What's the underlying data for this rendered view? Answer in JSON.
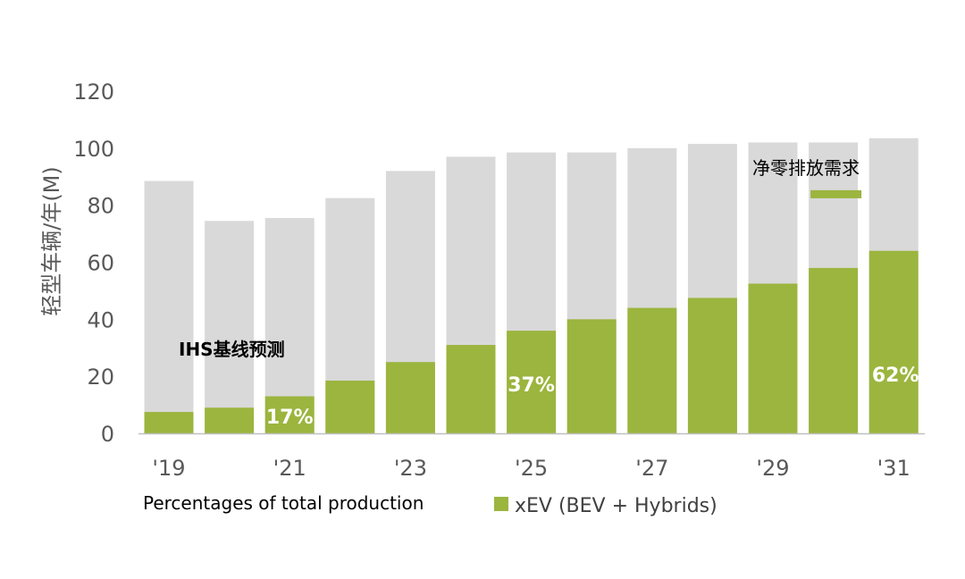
{
  "chart_data": {
    "type": "bar",
    "stacked_overlay": true,
    "categories": [
      "2019",
      "2020",
      "2021",
      "2022",
      "2023",
      "2024",
      "2025",
      "2026",
      "2027",
      "2028",
      "2029",
      "2030",
      "2031"
    ],
    "tick_labels": [
      "'19",
      "'21",
      "'23",
      "'25",
      "'27",
      "'29",
      "'31"
    ],
    "tick_categories": [
      "2019",
      "2021",
      "2023",
      "2025",
      "2027",
      "2029",
      "2031"
    ],
    "series": [
      {
        "values": [
          88.5,
          74.5,
          75.5,
          82.5,
          92,
          97,
          98.5,
          98.5,
          100,
          101.5,
          102,
          102,
          103.5
        ],
        "color": "#d9d9d9"
      },
      {
        "name": "xEV (BEV + Hybrids)",
        "values": [
          7.5,
          9,
          13,
          18.5,
          25,
          31,
          36,
          40,
          44,
          47.5,
          52.5,
          58,
          64
        ],
        "color": "#9bb53e"
      }
    ],
    "ylabel": "轻型车辆/年(M)",
    "yticks": [
      0,
      20,
      40,
      60,
      80,
      100,
      120
    ],
    "ylim": [
      0,
      120
    ],
    "grid": false,
    "percent_labels": [
      {
        "category": "2021",
        "text": "17%"
      },
      {
        "category": "2025",
        "text": "37%"
      },
      {
        "category": "2031",
        "text": "62%"
      }
    ],
    "annotations": {
      "baseline": "IHS基线预测",
      "net_zero": "净零排放需求",
      "net_zero_marker_category": "2030",
      "net_zero_marker_value": 84
    },
    "footnote": "Percentages of total production",
    "legend": {
      "label": "xEV (BEV + Hybrids)",
      "color": "#9bb53e",
      "placement": "bottom"
    }
  }
}
